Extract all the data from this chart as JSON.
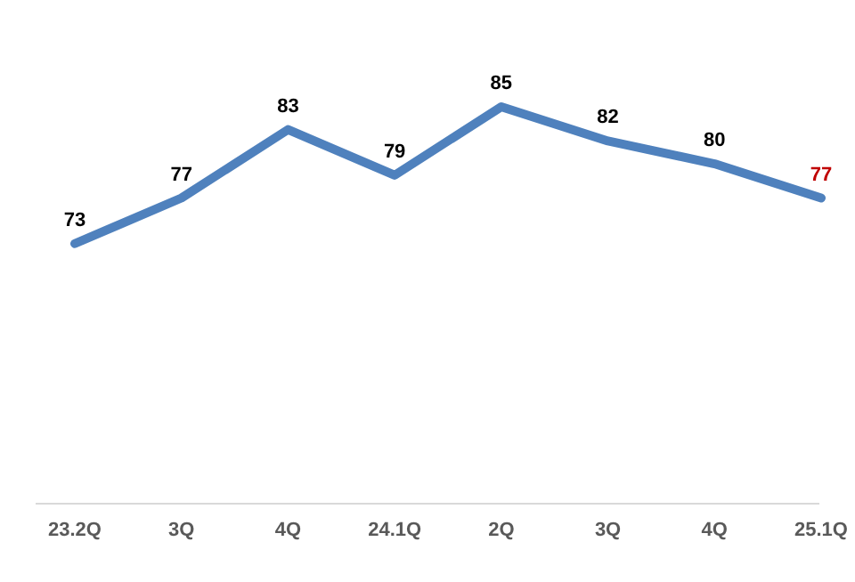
{
  "chart_data": {
    "type": "line",
    "categories": [
      "23.2Q",
      "3Q",
      "4Q",
      "24.1Q",
      "2Q",
      "3Q",
      "4Q",
      "25.1Q"
    ],
    "series": [
      {
        "color": "#4f81bd",
        "values": [
          73,
          77,
          83,
          79,
          85,
          82,
          80,
          77
        ]
      }
    ],
    "colors": [
      "#000000",
      "#000000",
      "#000000",
      "#000000",
      "#000000",
      "#000000",
      "#000000",
      "#c00000"
    ],
    "data_labels": true,
    "tick_labels": "x",
    "marker": "none"
  }
}
